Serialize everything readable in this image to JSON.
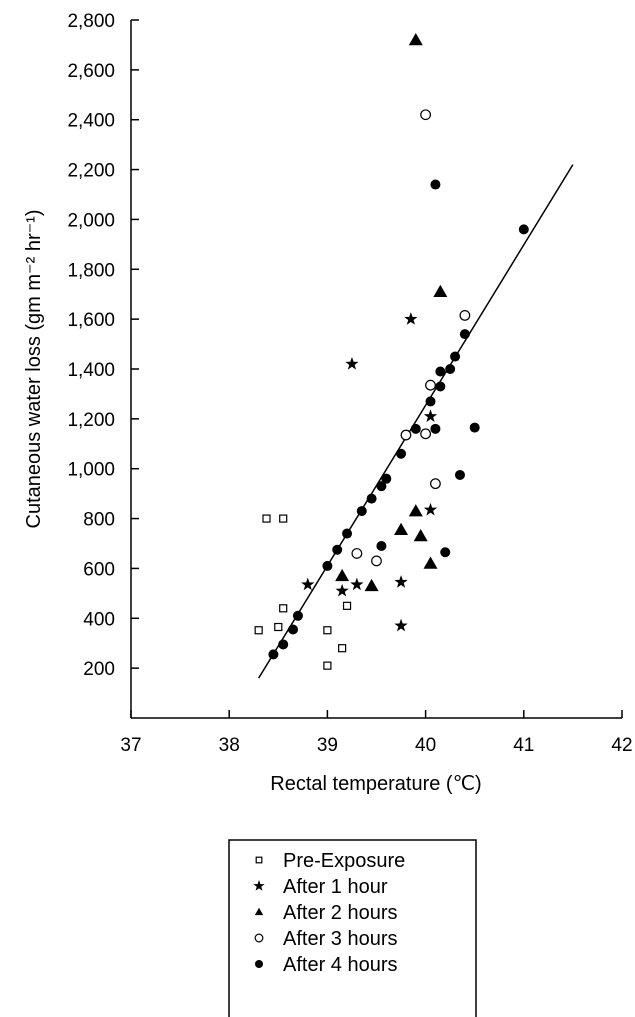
{
  "chart_data": {
    "type": "scatter",
    "xlabel": "Rectal temperature (℃)",
    "ylabel": "Cutaneous water loss (gm m⁻² hr⁻¹)",
    "xlim": [
      37,
      42
    ],
    "ylim": [
      0,
      2800
    ],
    "x_ticks": [
      "37",
      "38",
      "39",
      "40",
      "41",
      "42"
    ],
    "y_ticks": [
      "200",
      "400",
      "600",
      "800",
      "1,000",
      "1,200",
      "1,400",
      "1,600",
      "1,800",
      "2,000",
      "2,200",
      "2,400",
      "2,600",
      "2,800"
    ],
    "legend_position": "bottom",
    "grid": false,
    "series": [
      {
        "name": "Pre-Exposure",
        "marker": "open-square",
        "points": [
          [
            38.38,
            800
          ],
          [
            38.55,
            800
          ],
          [
            38.55,
            440
          ],
          [
            38.5,
            365
          ],
          [
            38.3,
            352
          ],
          [
            39.0,
            352
          ],
          [
            39.2,
            450
          ],
          [
            39.15,
            280
          ],
          [
            39.0,
            210
          ]
        ]
      },
      {
        "name": "After 1 hour",
        "marker": "star",
        "points": [
          [
            38.8,
            535
          ],
          [
            39.15,
            510
          ],
          [
            39.3,
            535
          ],
          [
            39.75,
            545
          ],
          [
            39.75,
            370
          ],
          [
            40.05,
            835
          ],
          [
            40.05,
            1210
          ],
          [
            39.85,
            1600
          ],
          [
            39.25,
            1420
          ]
        ]
      },
      {
        "name": "After 2 hours",
        "marker": "filled-triangle",
        "points": [
          [
            39.15,
            570
          ],
          [
            39.45,
            530
          ],
          [
            39.75,
            755
          ],
          [
            39.9,
            830
          ],
          [
            39.95,
            730
          ],
          [
            40.05,
            620
          ],
          [
            39.9,
            2720
          ],
          [
            40.15,
            1710
          ]
        ]
      },
      {
        "name": "After 3 hours",
        "marker": "open-circle",
        "points": [
          [
            39.3,
            660
          ],
          [
            39.5,
            630
          ],
          [
            39.8,
            1135
          ],
          [
            40.0,
            1140
          ],
          [
            40.05,
            1335
          ],
          [
            40.1,
            940
          ],
          [
            40.4,
            1615
          ],
          [
            40.0,
            2420
          ]
        ]
      },
      {
        "name": "After 4 hours",
        "marker": "filled-circle",
        "points": [
          [
            38.45,
            255
          ],
          [
            38.55,
            295
          ],
          [
            38.65,
            355
          ],
          [
            38.7,
            410
          ],
          [
            39.0,
            610
          ],
          [
            39.1,
            675
          ],
          [
            39.2,
            740
          ],
          [
            39.35,
            830
          ],
          [
            39.45,
            880
          ],
          [
            39.55,
            930
          ],
          [
            39.6,
            960
          ],
          [
            39.75,
            1060
          ],
          [
            39.9,
            1160
          ],
          [
            40.05,
            1270
          ],
          [
            40.1,
            1160
          ],
          [
            40.15,
            1330
          ],
          [
            40.15,
            1390
          ],
          [
            40.25,
            1400
          ],
          [
            40.3,
            1450
          ],
          [
            40.4,
            1540
          ],
          [
            40.5,
            1165
          ],
          [
            40.35,
            975
          ],
          [
            40.2,
            665
          ],
          [
            39.55,
            690
          ],
          [
            41.0,
            1960
          ],
          [
            40.1,
            2140
          ]
        ]
      }
    ],
    "trend_line": {
      "x": [
        38.3,
        41.5
      ],
      "y": [
        160,
        2220
      ]
    }
  }
}
